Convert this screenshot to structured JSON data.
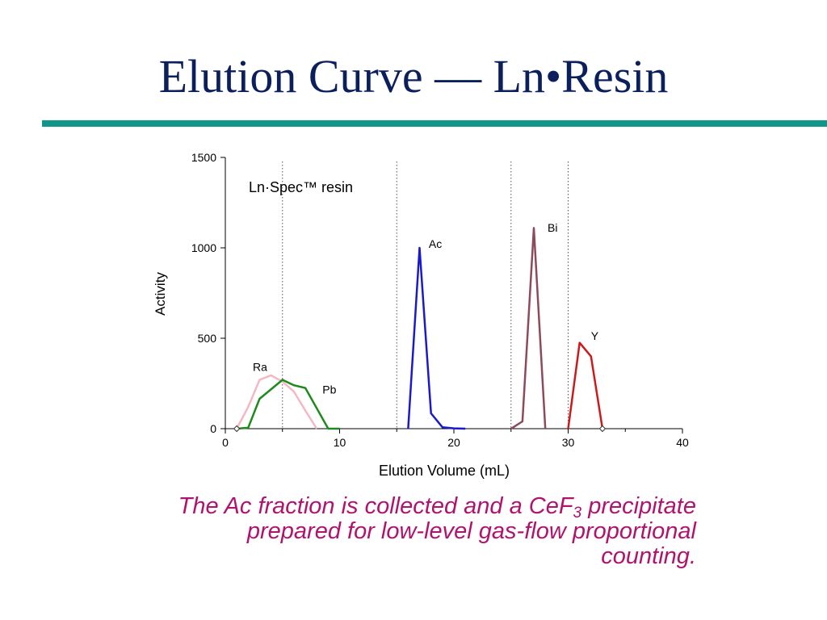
{
  "slide": {
    "title": "Elution Curve — Ln•Resin",
    "accent_rule_color": "#0f9688",
    "title_color": "#0b1f5c",
    "caption": {
      "text_before_sub": "The Ac fraction is collected and a CeF",
      "subscript": "3",
      "text_after_sub": "precipitate prepared for low-level gas-flow proportional counting.",
      "color": "#b0136e"
    }
  },
  "chart_data": {
    "type": "line",
    "inset_label": "Ln·Spec™ resin",
    "xlabel": "Elution Volume (mL)",
    "ylabel": "Activity",
    "xlim": [
      0,
      40
    ],
    "ylim": [
      0,
      1500
    ],
    "xticks": [
      0,
      10,
      20,
      30,
      40
    ],
    "yticks": [
      0,
      500,
      1000,
      1500
    ],
    "fraction_boundaries": [
      5,
      15,
      25,
      30
    ],
    "grid": false,
    "series": [
      {
        "name": "Ra",
        "color": "#f4b8c4",
        "x": [
          1,
          2,
          3,
          4,
          5,
          6,
          7,
          8
        ],
        "y": [
          0,
          120,
          270,
          295,
          260,
          205,
          100,
          0
        ]
      },
      {
        "name": "Pb",
        "color": "#1e8a1e",
        "x": [
          1,
          2,
          3,
          5,
          6,
          7,
          9,
          10
        ],
        "y": [
          0,
          5,
          165,
          270,
          240,
          225,
          0,
          0
        ]
      },
      {
        "name": "Ac",
        "color": "#1a1acc",
        "x": [
          16,
          17,
          18,
          19,
          20,
          21
        ],
        "y": [
          0,
          1000,
          85,
          8,
          2,
          0
        ]
      },
      {
        "name": "Bi",
        "color": "#8c4a5a",
        "x": [
          25,
          26,
          27,
          28
        ],
        "y": [
          0,
          40,
          1110,
          0
        ]
      },
      {
        "name": "Y",
        "color": "#cc1a1a",
        "x": [
          30,
          31,
          32,
          33
        ],
        "y": [
          0,
          475,
          400,
          0
        ]
      }
    ],
    "series_labels": [
      {
        "name": "Ra",
        "x": 2.4,
        "y": 320
      },
      {
        "name": "Pb",
        "x": 8.5,
        "y": 195
      },
      {
        "name": "Ac",
        "x": 17.8,
        "y": 1000
      },
      {
        "name": "Bi",
        "x": 28.2,
        "y": 1090
      },
      {
        "name": "Y",
        "x": 32,
        "y": 490
      }
    ],
    "markers": [
      {
        "x": 1,
        "y": 0
      },
      {
        "x": 33,
        "y": 0
      }
    ]
  }
}
